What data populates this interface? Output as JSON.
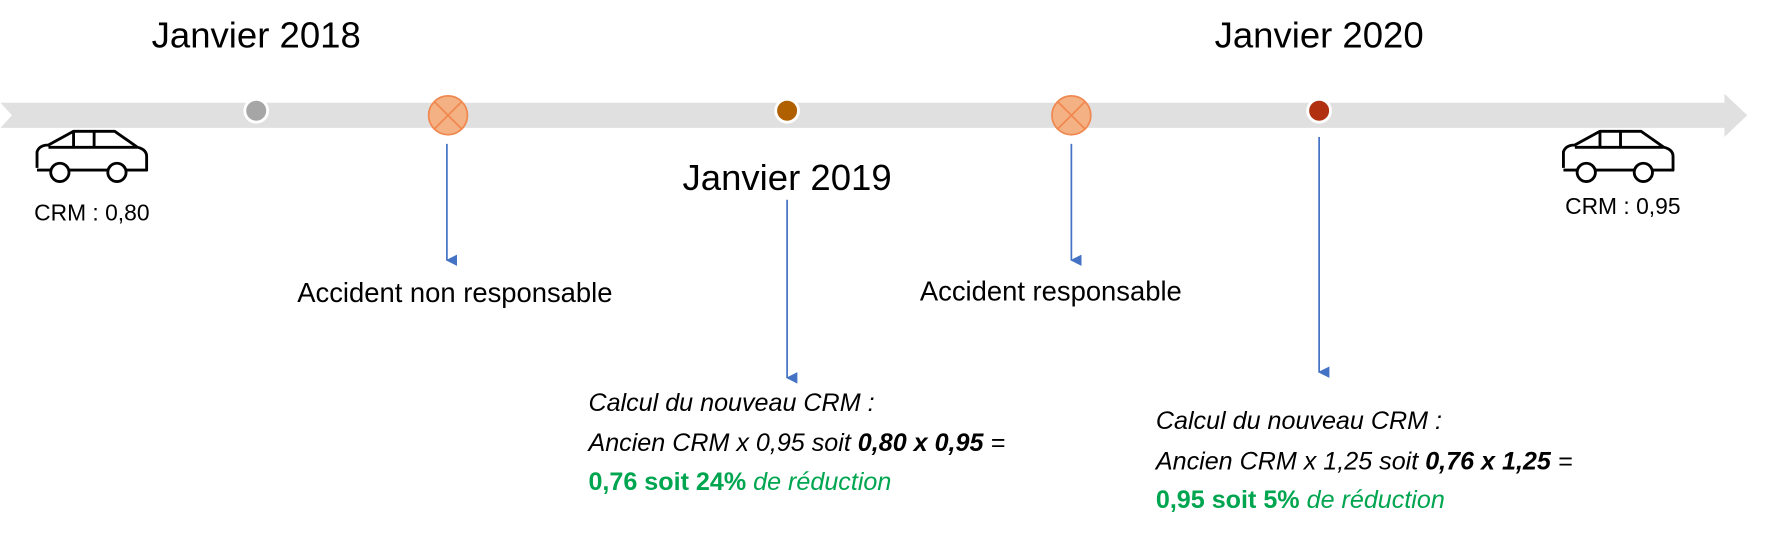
{
  "dates": [
    "Janvier 2018",
    "Janvier 2019",
    "Janvier 2020"
  ],
  "start": {
    "label": "CRM : 0,80"
  },
  "end": {
    "label": "CRM : 0,95"
  },
  "events": [
    "Accident non responsable",
    "Accident responsable"
  ],
  "calculations": [
    {
      "title": "Calcul du nouveau CRM :",
      "line2": [
        "Ancien CRM x 0,95 soit ",
        "0,80 x 0,95",
        " ="
      ],
      "line3": [
        "0,76 soit 24%",
        " de réduction"
      ]
    },
    {
      "title": "Calcul du nouveau CRM :",
      "line2": [
        "Ancien CRM x 1,25 soit ",
        "0,76 x 1,25",
        " ="
      ],
      "line3": [
        "0,95 soit 5%",
        " de réduction"
      ]
    }
  ]
}
